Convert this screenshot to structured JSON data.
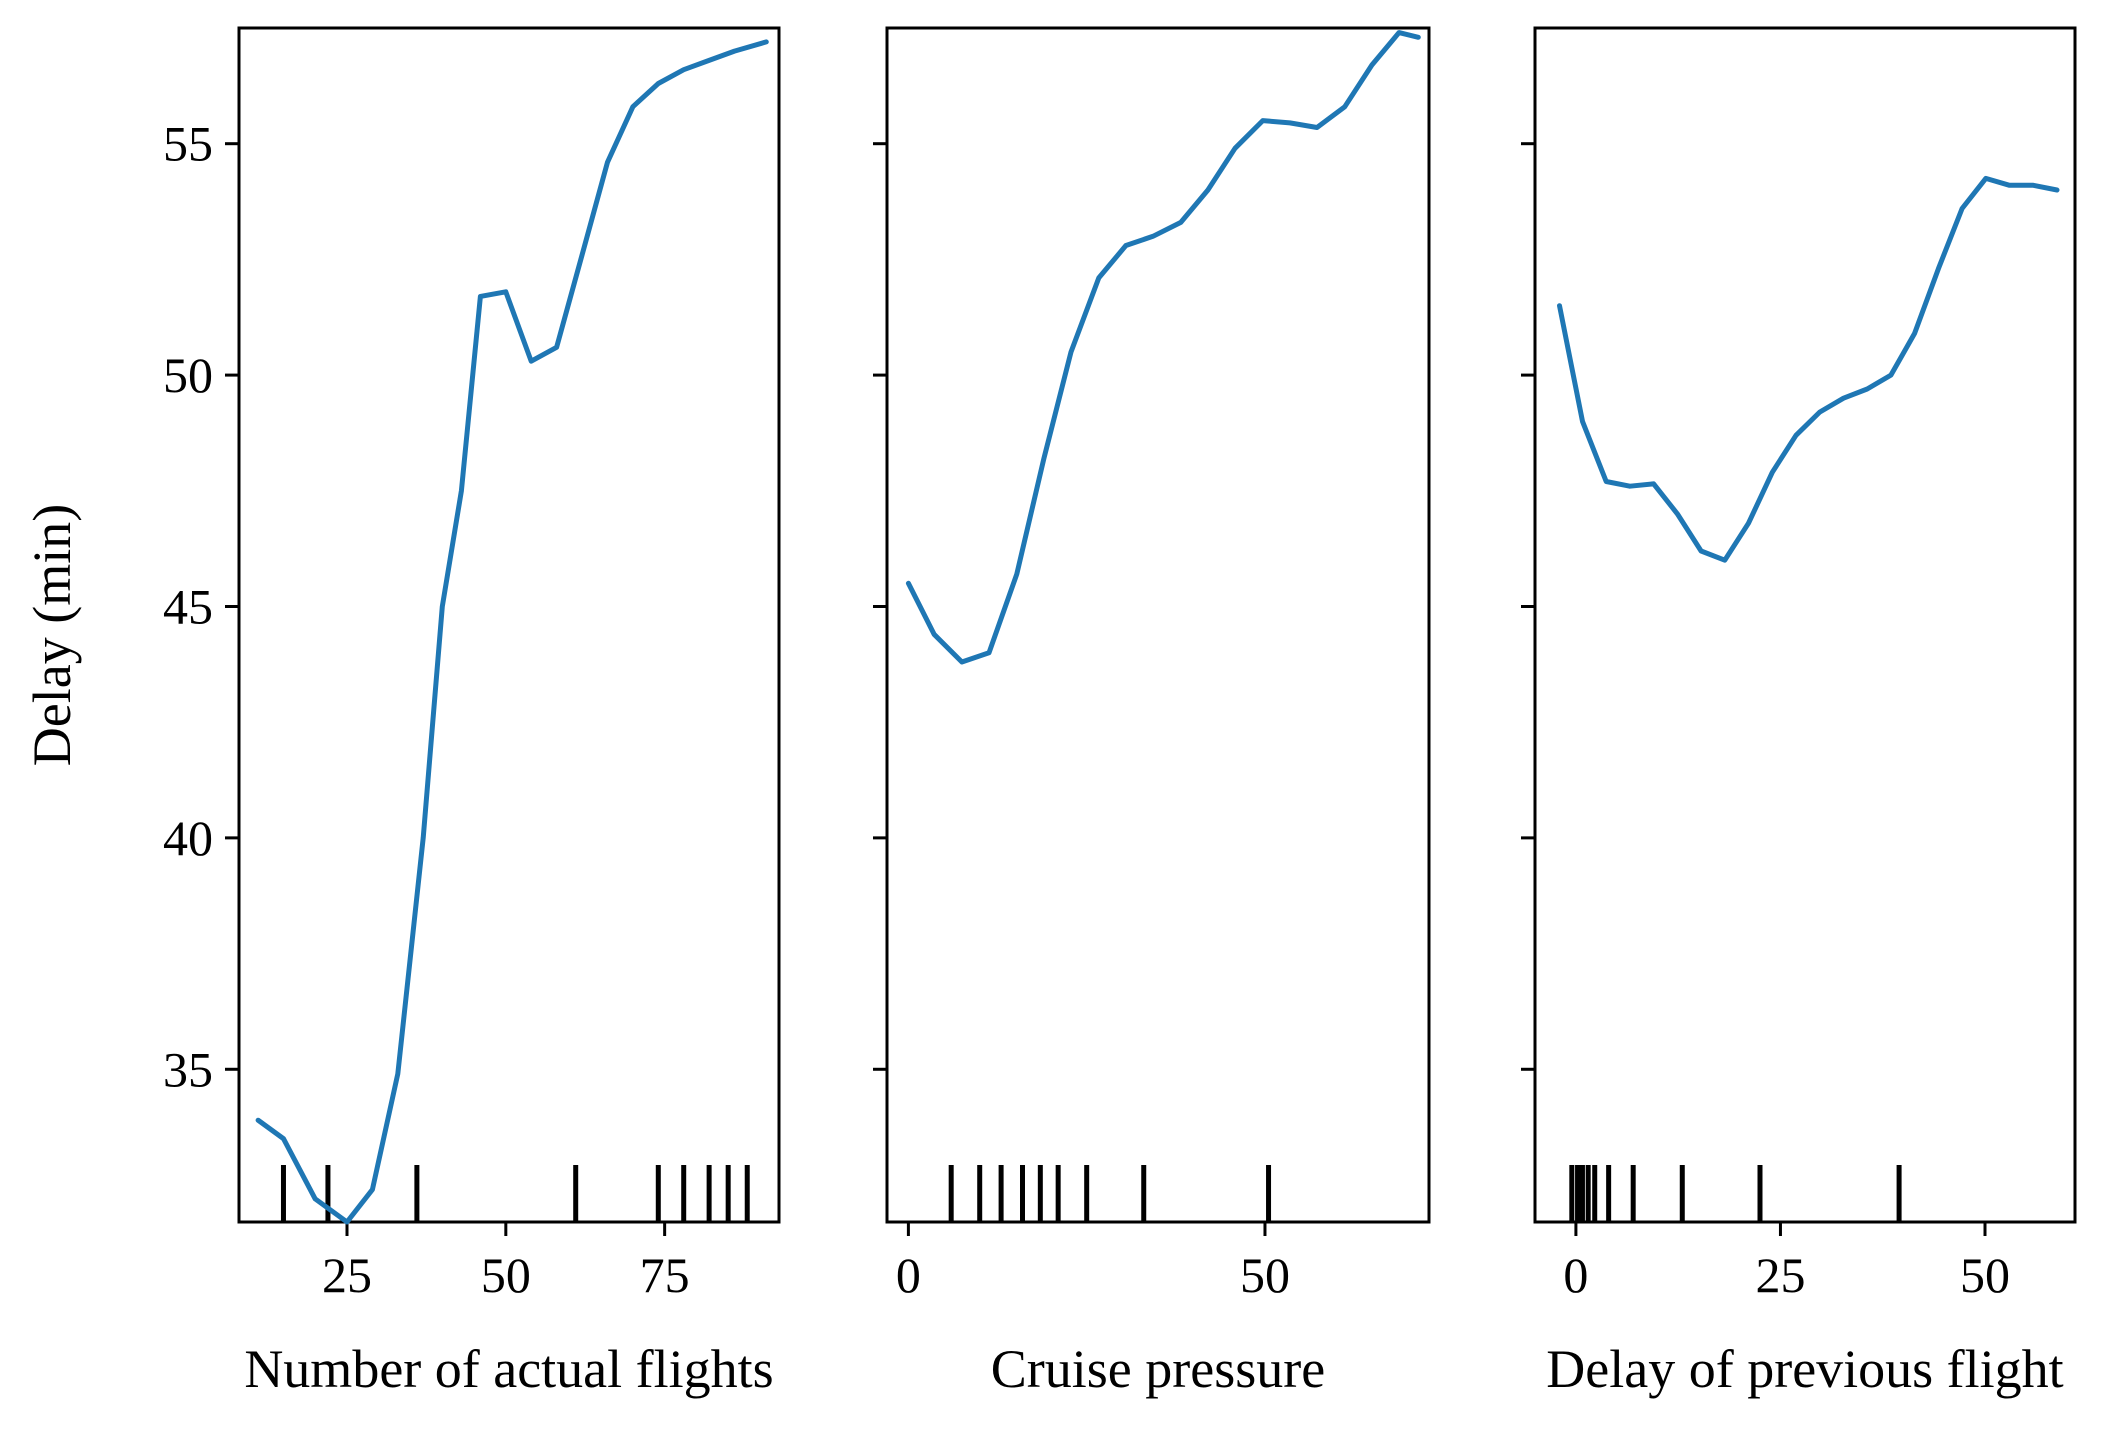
{
  "colors": {
    "line": "#1f77b4",
    "axis": "#000000"
  },
  "chart_data": [
    {
      "type": "line",
      "title": "",
      "xlabel": "Number of actual flights",
      "ylabel": "Delay (min)",
      "xlim": [
        8,
        93
      ],
      "ylim": [
        31.7,
        57.5
      ],
      "xticks": [
        25,
        50,
        75
      ],
      "xtick_labels": [
        "25",
        "50",
        "75"
      ],
      "yticks": [
        35,
        40,
        45,
        50,
        55
      ],
      "ytick_labels": [
        "35",
        "40",
        "45",
        "50",
        "55"
      ],
      "x": [
        11,
        15,
        20,
        25,
        29,
        33,
        37,
        40,
        43,
        46,
        50,
        54,
        58,
        62,
        66,
        70,
        74,
        78,
        82,
        86,
        91
      ],
      "y": [
        33.9,
        33.5,
        32.2,
        31.7,
        32.4,
        34.9,
        40.0,
        45.0,
        47.5,
        51.7,
        51.8,
        50.3,
        50.6,
        52.6,
        54.6,
        55.8,
        56.3,
        56.6,
        56.8,
        57.0,
        57.2
      ],
      "rug": [
        15,
        22,
        36,
        61,
        74,
        78,
        82,
        85,
        88
      ]
    },
    {
      "type": "line",
      "title": "",
      "xlabel": "Cruise pressure",
      "ylabel": "",
      "xlim": [
        -3,
        73
      ],
      "ylim": [
        31.7,
        57.5
      ],
      "xticks": [
        0,
        50
      ],
      "xtick_labels": [
        "0",
        "50"
      ],
      "yticks": [
        35,
        40,
        45,
        50,
        55
      ],
      "ytick_labels": [],
      "x": [
        0,
        3.6,
        7.5,
        11.3,
        15.2,
        19,
        22.8,
        26.7,
        30.5,
        34.3,
        38.2,
        42,
        45.8,
        49.7,
        53.5,
        57.3,
        61.2,
        65,
        68.8,
        71.5
      ],
      "y": [
        45.5,
        44.4,
        43.8,
        44.0,
        45.7,
        48.2,
        50.5,
        52.1,
        52.8,
        53.0,
        53.3,
        54.0,
        54.9,
        55.5,
        55.45,
        55.35,
        55.8,
        56.7,
        57.4,
        57.3
      ],
      "rug": [
        6,
        10,
        13,
        16,
        18.5,
        21,
        25,
        33,
        50.5
      ]
    },
    {
      "type": "line",
      "title": "",
      "xlabel": "Delay of previous flight",
      "ylabel": "",
      "xlim": [
        -5,
        61
      ],
      "ylim": [
        31.7,
        57.5
      ],
      "xticks": [
        0,
        25,
        50
      ],
      "xtick_labels": [
        "0",
        "25",
        "50"
      ],
      "yticks": [
        35,
        40,
        45,
        50,
        55
      ],
      "ytick_labels": [],
      "x": [
        -2,
        0.8,
        3.7,
        6.6,
        9.5,
        12.4,
        15.3,
        18.2,
        21.1,
        24,
        26.9,
        29.8,
        32.7,
        35.6,
        38.5,
        41.4,
        44.3,
        47.2,
        50.1,
        53,
        55.9,
        58.8
      ],
      "y": [
        51.5,
        49.0,
        47.7,
        47.6,
        47.65,
        47.0,
        46.2,
        46.0,
        46.8,
        47.9,
        48.7,
        49.2,
        49.5,
        49.7,
        50.0,
        50.9,
        52.3,
        53.6,
        54.25,
        54.1,
        54.1,
        54.0
      ],
      "rug": [
        -0.5,
        0.2,
        0.8,
        1.5,
        2.3,
        4,
        7,
        13,
        22.5,
        39.5
      ]
    }
  ]
}
